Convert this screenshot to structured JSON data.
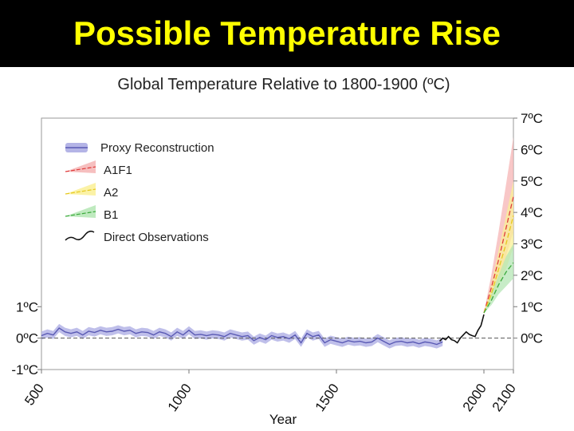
{
  "slide": {
    "title": "Possible Temperature Rise"
  },
  "chart_data": {
    "type": "line",
    "title": "Global Temperature Relative to 1800-1900 (ºC)",
    "xlabel": "Year",
    "ylabel": "",
    "xlim": [
      500,
      2100
    ],
    "ylim": [
      -1,
      7
    ],
    "zero_line": "dashed",
    "legend_position": "top-left",
    "x_ticks": [
      "500",
      "1000",
      "1500",
      "2000",
      "2100"
    ],
    "left_ticks": [
      {
        "value": 1,
        "label": "1ºC"
      },
      {
        "value": 0,
        "label": "0ºC"
      },
      {
        "value": -1,
        "label": "-1ºC"
      }
    ],
    "right_ticks": [
      {
        "value": 7,
        "label": "7ºC"
      },
      {
        "value": 6,
        "label": "6ºC"
      },
      {
        "value": 5,
        "label": "5ºC"
      },
      {
        "value": 4,
        "label": "4ºC"
      },
      {
        "value": 3,
        "label": "3ºC"
      },
      {
        "value": 2,
        "label": "2ºC"
      },
      {
        "value": 1,
        "label": "1ºC"
      },
      {
        "value": 0,
        "label": "0ºC"
      }
    ],
    "colors": {
      "proxy_line": "#5a5ab4",
      "proxy_band": "#b4b4e6",
      "a1f1_line": "#e03c3c",
      "a1f1_band": "#f5b4b4",
      "a2_line": "#e6c81e",
      "a2_band": "#faf096",
      "b1_line": "#3caa3c",
      "b1_band": "#b4e6b4",
      "observed": "#111111"
    },
    "series": [
      {
        "name": "Proxy Reconstruction",
        "band": 0.13,
        "x": [
          500,
          520,
          540,
          560,
          580,
          600,
          620,
          640,
          660,
          680,
          700,
          720,
          740,
          760,
          780,
          800,
          820,
          840,
          860,
          880,
          900,
          920,
          940,
          960,
          980,
          1000,
          1020,
          1040,
          1060,
          1080,
          1100,
          1120,
          1140,
          1160,
          1180,
          1200,
          1220,
          1240,
          1260,
          1280,
          1300,
          1320,
          1340,
          1360,
          1380,
          1400,
          1420,
          1440,
          1460,
          1480,
          1500,
          1520,
          1540,
          1560,
          1580,
          1600,
          1620,
          1640,
          1660,
          1680,
          1700,
          1720,
          1740,
          1760,
          1780,
          1800,
          1820,
          1840,
          1860
        ],
        "values": [
          0.08,
          0.15,
          0.1,
          0.32,
          0.2,
          0.15,
          0.2,
          0.1,
          0.22,
          0.18,
          0.25,
          0.2,
          0.22,
          0.28,
          0.22,
          0.25,
          0.15,
          0.2,
          0.18,
          0.1,
          0.2,
          0.15,
          0.05,
          0.2,
          0.1,
          0.25,
          0.1,
          0.12,
          0.08,
          0.12,
          0.1,
          0.05,
          0.15,
          0.1,
          0.05,
          0.08,
          -0.08,
          0.02,
          -0.05,
          0.08,
          0.02,
          0.05,
          -0.02,
          0.1,
          -0.15,
          0.15,
          0.05,
          0.1,
          -0.15,
          -0.05,
          -0.1,
          -0.15,
          -0.08,
          -0.12,
          -0.1,
          -0.15,
          -0.12,
          0.0,
          -0.1,
          -0.2,
          -0.12,
          -0.1,
          -0.15,
          -0.12,
          -0.18,
          -0.12,
          -0.15,
          -0.2,
          -0.12
        ]
      },
      {
        "name": "A1F1",
        "x": [
          2000,
          2025,
          2050,
          2075,
          2100
        ],
        "values": [
          0.8,
          1.6,
          2.5,
          3.5,
          4.5
        ],
        "upper": [
          0.8,
          2.0,
          3.4,
          4.9,
          6.4
        ],
        "lower": [
          0.8,
          1.3,
          1.9,
          2.6,
          3.4
        ]
      },
      {
        "name": "A2",
        "x": [
          2000,
          2025,
          2050,
          2075,
          2100
        ],
        "values": [
          0.8,
          1.4,
          2.2,
          3.0,
          3.9
        ],
        "upper": [
          0.8,
          1.7,
          2.8,
          3.9,
          5.0
        ],
        "lower": [
          0.8,
          1.2,
          1.7,
          2.2,
          2.9
        ]
      },
      {
        "name": "B1",
        "x": [
          2000,
          2025,
          2050,
          2075,
          2100
        ],
        "values": [
          0.8,
          1.2,
          1.7,
          2.1,
          2.4
        ],
        "upper": [
          0.8,
          1.4,
          2.0,
          2.6,
          3.0
        ],
        "lower": [
          0.8,
          1.05,
          1.4,
          1.65,
          1.9
        ]
      },
      {
        "name": "Direct Observations",
        "x": [
          1850,
          1860,
          1870,
          1880,
          1890,
          1900,
          1910,
          1920,
          1930,
          1940,
          1950,
          1960,
          1970,
          1980,
          1990,
          2000
        ],
        "values": [
          -0.1,
          0.0,
          -0.05,
          0.05,
          -0.05,
          -0.08,
          -0.15,
          0.0,
          0.1,
          0.2,
          0.12,
          0.08,
          0.05,
          0.25,
          0.4,
          0.75
        ]
      }
    ]
  }
}
